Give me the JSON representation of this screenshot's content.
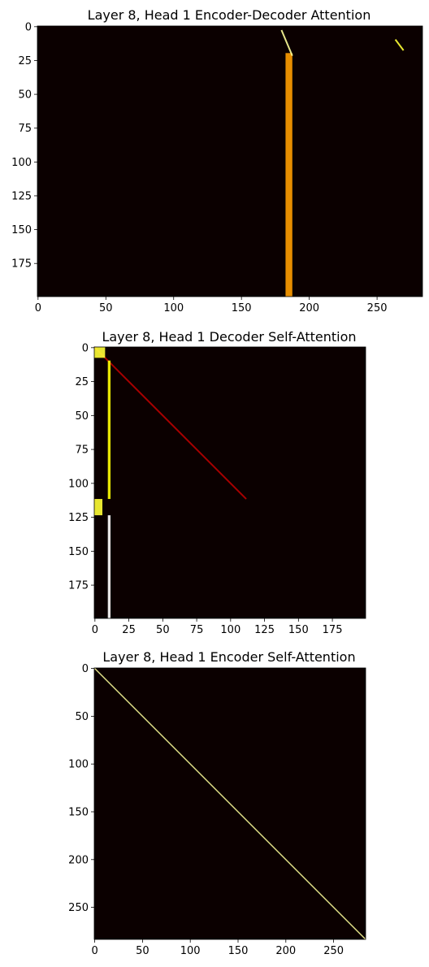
{
  "chart_data": [
    {
      "type": "heatmap",
      "title": "Layer 8, Head 1 Encoder-Decoder Attention",
      "colormap": "hot",
      "rows": 200,
      "cols": 284,
      "xticks": [
        0,
        50,
        100,
        150,
        200,
        250
      ],
      "yticks": [
        0,
        25,
        50,
        75,
        100,
        125,
        150,
        175
      ],
      "xlim": [
        0,
        284
      ],
      "ylim": [
        200,
        0
      ],
      "grid": false,
      "features": [
        {
          "kind": "column_band",
          "col_start": 183,
          "col_end": 188,
          "row_start": 20,
          "row_end": 200,
          "value": 0.6
        },
        {
          "kind": "diagonal",
          "row_start": 3,
          "row_end": 22,
          "col_start": 180,
          "col_end": 188,
          "value": 0.9
        },
        {
          "kind": "diagonal",
          "row_start": 10,
          "row_end": 18,
          "col_start": 264,
          "col_end": 270,
          "value": 0.8
        }
      ]
    },
    {
      "type": "heatmap",
      "title": "Layer 8, Head 1 Decoder Self-Attention",
      "colormap": "hot",
      "rows": 200,
      "cols": 200,
      "xticks": [
        0,
        25,
        50,
        75,
        100,
        125,
        150,
        175
      ],
      "yticks": [
        0,
        25,
        50,
        75,
        100,
        125,
        150,
        175
      ],
      "xlim": [
        0,
        200
      ],
      "ylim": [
        200,
        0
      ],
      "grid": false,
      "features": [
        {
          "kind": "diagonal",
          "row_start": 0,
          "row_end": 112,
          "col_start": 0,
          "col_end": 112,
          "value": 0.25
        },
        {
          "kind": "column_band",
          "col_start": 10,
          "col_end": 12,
          "row_start": 10,
          "row_end": 112,
          "value": 0.75
        },
        {
          "kind": "column_band",
          "col_start": 10,
          "col_end": 12,
          "row_start": 124,
          "row_end": 200,
          "value": 1.0
        },
        {
          "kind": "block",
          "row_start": 0,
          "row_end": 8,
          "col_start": 0,
          "col_end": 8,
          "value": 0.8
        },
        {
          "kind": "block",
          "row_start": 112,
          "row_end": 124,
          "col_start": 0,
          "col_end": 6,
          "value": 0.8
        }
      ]
    },
    {
      "type": "heatmap",
      "title": "Layer 8, Head 1 Encoder Self-Attention",
      "colormap": "hot",
      "rows": 284,
      "cols": 284,
      "xticks": [
        0,
        50,
        100,
        150,
        200,
        250
      ],
      "yticks": [
        0,
        50,
        100,
        150,
        200,
        250
      ],
      "xlim": [
        0,
        284
      ],
      "ylim": [
        284,
        0
      ],
      "grid": false,
      "features": [
        {
          "kind": "diagonal",
          "row_start": 0,
          "row_end": 284,
          "col_start": 0,
          "col_end": 284,
          "value": 0.9
        }
      ]
    }
  ]
}
